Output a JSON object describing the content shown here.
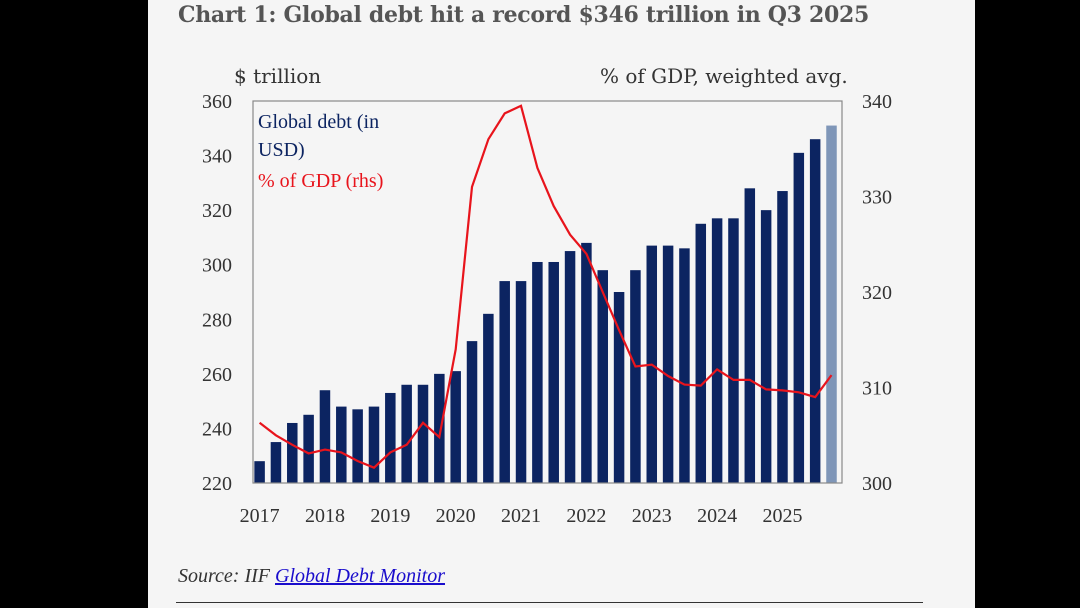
{
  "title": "Chart 1: Global debt hit a record $346 trillion in Q3 2025",
  "source": {
    "prefix": "Source: IIF",
    "link": "Global Debt Monitor"
  },
  "colors": {
    "bar": "#0c2461",
    "bar_estimate": "#7f96b8",
    "line": "#e8141c",
    "legend_debt": "#0c2461",
    "legend_gdp": "#e8141c"
  },
  "chart_data": {
    "type": "bar",
    "title": "Chart 1: Global debt hit a record $346 trillion in Q3 2025",
    "ylabel": "$ trillion",
    "y2label": "% of GDP, weighted avg.",
    "ylim": [
      220,
      360
    ],
    "y2lim": [
      300,
      340
    ],
    "yticks": [
      "360",
      "340",
      "320",
      "300",
      "280",
      "260",
      "240",
      "220"
    ],
    "y2ticks": [
      "340",
      "330",
      "320",
      "310",
      "300"
    ],
    "xticks": [
      "2017",
      "2018",
      "2019",
      "2020",
      "2021",
      "2022",
      "2023",
      "2024",
      "2025"
    ],
    "legend": [
      "Global debt (in",
      "USD)",
      "% of GDP (rhs)"
    ],
    "legend_placement": "top-left",
    "grid": false,
    "quarters": [
      "2017Q1",
      "2017Q2",
      "2017Q3",
      "2017Q4",
      "2018Q1",
      "2018Q2",
      "2018Q3",
      "2018Q4",
      "2019Q1",
      "2019Q2",
      "2019Q3",
      "2019Q4",
      "2020Q1",
      "2020Q2",
      "2020Q3",
      "2020Q4",
      "2021Q1",
      "2021Q2",
      "2021Q3",
      "2021Q4",
      "2022Q1",
      "2022Q2",
      "2022Q3",
      "2022Q4",
      "2023Q1",
      "2023Q2",
      "2023Q3",
      "2023Q4",
      "2024Q1",
      "2024Q2",
      "2024Q3",
      "2024Q4",
      "2025Q1",
      "2025Q2",
      "2025Q3",
      "2025Q4"
    ],
    "series": [
      {
        "name": "Global debt (in USD)",
        "axis": "left",
        "type": "bar",
        "values": [
          228,
          235,
          242,
          245,
          254,
          248,
          247,
          248,
          253,
          256,
          256,
          260,
          261,
          272,
          282,
          294,
          294,
          301,
          301,
          305,
          308,
          298,
          290,
          298,
          307,
          307,
          306,
          315,
          317,
          317,
          328,
          320,
          327,
          341,
          346,
          351
        ]
      },
      {
        "name": "% of GDP (rhs)",
        "axis": "right",
        "type": "line",
        "values": [
          306.3,
          305.0,
          304.0,
          303.1,
          303.5,
          303.2,
          302.3,
          301.6,
          303.2,
          304.0,
          306.3,
          304.8,
          314.0,
          331.0,
          336.0,
          338.7,
          339.5,
          333.0,
          329.0,
          326.0,
          324.0,
          320.0,
          316.0,
          312.2,
          312.4,
          311.2,
          310.3,
          310.2,
          311.9,
          310.8,
          310.8,
          309.8,
          309.7,
          309.5,
          309.0,
          311.3
        ]
      }
    ]
  }
}
